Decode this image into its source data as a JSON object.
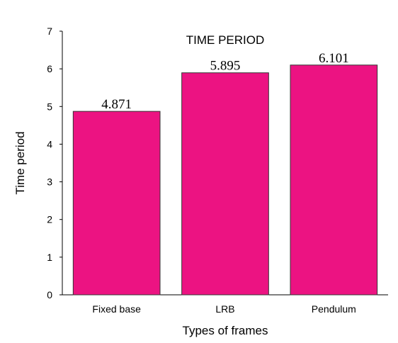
{
  "chart_data": {
    "type": "bar",
    "title": "TIME PERIOD",
    "xlabel": "Types of frames",
    "ylabel": "Time period",
    "categories": [
      "Fixed base",
      "LRB",
      "Pendulum"
    ],
    "values": [
      4.871,
      5.895,
      6.101
    ],
    "data_labels": [
      "4.871",
      "5.895",
      "6.101"
    ],
    "ylim": [
      0,
      7
    ],
    "yticks": [
      "0",
      "1",
      "2",
      "3",
      "4",
      "5",
      "6",
      "7"
    ],
    "bar_color": "#ec1382",
    "grid": false,
    "legend": "none"
  }
}
